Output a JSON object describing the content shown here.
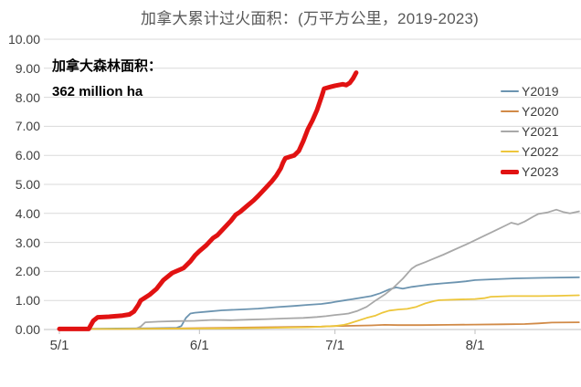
{
  "title": "加拿大累计过火面积：(万平方公里，2019-2023)",
  "annotation": {
    "line1": "加拿大森林面积：",
    "line2": "362 million ha"
  },
  "colors": {
    "title_text": "#595959",
    "axis_text": "#404040",
    "gridline": "#DADADA",
    "axis_line": "#BFBFBF",
    "y2019": "#6C94B0",
    "y2020": "#D18A47",
    "y2021": "#A8A8A8",
    "y2022": "#EDC63B",
    "y2023": "#E11212"
  },
  "chart_data": {
    "type": "line",
    "title": "加拿大累计过火面积：(万平方公里，2019-2023)",
    "xlabel": "",
    "ylabel": "",
    "x_axis": {
      "unit": "days since 5/1",
      "domain": [
        0,
        115
      ],
      "tick_days": [
        0,
        31,
        61,
        92
      ],
      "tick_labels": [
        "5/1",
        "6/1",
        "7/1",
        "8/1"
      ]
    },
    "y_axis": {
      "range": [
        0,
        10
      ],
      "tick_step": 1,
      "tick_labels": [
        "0.00",
        "1.00",
        "2.00",
        "3.00",
        "4.00",
        "5.00",
        "6.00",
        "7.00",
        "8.00",
        "9.00",
        "10.00"
      ],
      "gridlines": true
    },
    "legend_position": "right",
    "series": [
      {
        "name": "Y2019",
        "color": "#6C94B0",
        "width": 1.8,
        "points": [
          [
            0,
            0.02
          ],
          [
            10,
            0.03
          ],
          [
            20,
            0.04
          ],
          [
            26,
            0.06
          ],
          [
            27,
            0.12
          ],
          [
            28,
            0.4
          ],
          [
            29,
            0.55
          ],
          [
            30,
            0.58
          ],
          [
            33,
            0.62
          ],
          [
            36,
            0.66
          ],
          [
            40,
            0.69
          ],
          [
            44,
            0.72
          ],
          [
            48,
            0.77
          ],
          [
            52,
            0.81
          ],
          [
            55,
            0.85
          ],
          [
            58,
            0.88
          ],
          [
            60,
            0.92
          ],
          [
            61,
            0.95
          ],
          [
            63,
            1.0
          ],
          [
            65,
            1.05
          ],
          [
            67,
            1.1
          ],
          [
            69,
            1.15
          ],
          [
            71,
            1.25
          ],
          [
            73,
            1.38
          ],
          [
            74.5,
            1.45
          ],
          [
            76,
            1.41
          ],
          [
            78,
            1.47
          ],
          [
            80,
            1.51
          ],
          [
            82,
            1.55
          ],
          [
            85,
            1.59
          ],
          [
            88,
            1.63
          ],
          [
            90,
            1.66
          ],
          [
            92,
            1.7
          ],
          [
            96,
            1.73
          ],
          [
            101,
            1.76
          ],
          [
            107,
            1.78
          ],
          [
            115,
            1.8
          ]
        ]
      },
      {
        "name": "Y2020",
        "color": "#D18A47",
        "width": 1.8,
        "points": [
          [
            0,
            0.02
          ],
          [
            12,
            0.02
          ],
          [
            22,
            0.03
          ],
          [
            32,
            0.05
          ],
          [
            42,
            0.07
          ],
          [
            52,
            0.09
          ],
          [
            58,
            0.1
          ],
          [
            61,
            0.12
          ],
          [
            65,
            0.13
          ],
          [
            69,
            0.14
          ],
          [
            72,
            0.16
          ],
          [
            75,
            0.15
          ],
          [
            80,
            0.15
          ],
          [
            86,
            0.16
          ],
          [
            92,
            0.17
          ],
          [
            98,
            0.18
          ],
          [
            103,
            0.19
          ],
          [
            106,
            0.21
          ],
          [
            109,
            0.24
          ],
          [
            115,
            0.25
          ]
        ]
      },
      {
        "name": "Y2021",
        "color": "#A8A8A8",
        "width": 1.8,
        "points": [
          [
            0,
            0.02
          ],
          [
            12,
            0.02
          ],
          [
            17,
            0.03
          ],
          [
            18,
            0.1
          ],
          [
            19,
            0.25
          ],
          [
            22,
            0.27
          ],
          [
            26,
            0.29
          ],
          [
            30,
            0.3
          ],
          [
            34,
            0.33
          ],
          [
            38,
            0.32
          ],
          [
            42,
            0.34
          ],
          [
            46,
            0.36
          ],
          [
            50,
            0.38
          ],
          [
            54,
            0.4
          ],
          [
            57,
            0.43
          ],
          [
            59,
            0.46
          ],
          [
            61,
            0.5
          ],
          [
            63,
            0.53
          ],
          [
            64,
            0.55
          ],
          [
            66,
            0.64
          ],
          [
            68,
            0.78
          ],
          [
            70,
            1.0
          ],
          [
            72,
            1.2
          ],
          [
            74,
            1.45
          ],
          [
            76,
            1.75
          ],
          [
            78,
            2.1
          ],
          [
            79,
            2.2
          ],
          [
            81,
            2.32
          ],
          [
            83,
            2.45
          ],
          [
            85,
            2.58
          ],
          [
            87,
            2.72
          ],
          [
            89,
            2.86
          ],
          [
            91,
            3.0
          ],
          [
            93,
            3.15
          ],
          [
            95,
            3.3
          ],
          [
            97,
            3.45
          ],
          [
            99,
            3.6
          ],
          [
            100,
            3.68
          ],
          [
            101.5,
            3.62
          ],
          [
            103,
            3.72
          ],
          [
            105,
            3.9
          ],
          [
            106,
            3.98
          ],
          [
            108,
            4.03
          ],
          [
            110,
            4.13
          ],
          [
            111.5,
            4.05
          ],
          [
            113,
            4.0
          ],
          [
            115,
            4.07
          ]
        ]
      },
      {
        "name": "Y2022",
        "color": "#EDC63B",
        "width": 1.8,
        "points": [
          [
            0,
            0.02
          ],
          [
            15,
            0.02
          ],
          [
            30,
            0.03
          ],
          [
            45,
            0.05
          ],
          [
            55,
            0.08
          ],
          [
            61,
            0.12
          ],
          [
            63,
            0.16
          ],
          [
            64,
            0.2
          ],
          [
            66,
            0.3
          ],
          [
            68,
            0.4
          ],
          [
            70,
            0.48
          ],
          [
            71.5,
            0.58
          ],
          [
            73,
            0.65
          ],
          [
            75,
            0.69
          ],
          [
            77,
            0.71
          ],
          [
            79,
            0.78
          ],
          [
            81,
            0.9
          ],
          [
            83,
            0.98
          ],
          [
            84,
            1.01
          ],
          [
            88,
            1.03
          ],
          [
            92,
            1.05
          ],
          [
            94,
            1.08
          ],
          [
            95.5,
            1.13
          ],
          [
            100,
            1.15
          ],
          [
            106,
            1.15
          ],
          [
            110,
            1.16
          ],
          [
            115,
            1.18
          ]
        ]
      },
      {
        "name": "Y2023",
        "color": "#E11212",
        "width": 5,
        "points": [
          [
            0,
            0.02
          ],
          [
            6.5,
            0.02
          ],
          [
            7.5,
            0.3
          ],
          [
            8.5,
            0.42
          ],
          [
            11,
            0.44
          ],
          [
            14,
            0.48
          ],
          [
            15.5,
            0.52
          ],
          [
            16.5,
            0.62
          ],
          [
            17.5,
            0.85
          ],
          [
            18,
            1.0
          ],
          [
            19,
            1.1
          ],
          [
            20,
            1.2
          ],
          [
            21.5,
            1.4
          ],
          [
            23,
            1.7
          ],
          [
            25,
            1.95
          ],
          [
            26.5,
            2.05
          ],
          [
            27.5,
            2.12
          ],
          [
            29,
            2.35
          ],
          [
            30,
            2.55
          ],
          [
            31,
            2.7
          ],
          [
            32.5,
            2.9
          ],
          [
            34,
            3.15
          ],
          [
            35,
            3.25
          ],
          [
            36.5,
            3.5
          ],
          [
            38,
            3.75
          ],
          [
            39,
            3.95
          ],
          [
            40,
            4.05
          ],
          [
            41.5,
            4.25
          ],
          [
            43,
            4.45
          ],
          [
            44,
            4.6
          ],
          [
            45.5,
            4.85
          ],
          [
            47,
            5.1
          ],
          [
            48,
            5.3
          ],
          [
            49,
            5.55
          ],
          [
            49.5,
            5.75
          ],
          [
            50,
            5.9
          ],
          [
            51,
            5.95
          ],
          [
            52,
            6.0
          ],
          [
            53,
            6.15
          ],
          [
            54,
            6.5
          ],
          [
            55,
            6.9
          ],
          [
            56,
            7.2
          ],
          [
            57,
            7.55
          ],
          [
            58,
            8.0
          ],
          [
            58.6,
            8.3
          ],
          [
            60,
            8.36
          ],
          [
            61,
            8.4
          ],
          [
            62.7,
            8.45
          ],
          [
            63.5,
            8.42
          ],
          [
            64.3,
            8.5
          ],
          [
            65,
            8.65
          ],
          [
            65.7,
            8.85
          ]
        ]
      }
    ]
  }
}
